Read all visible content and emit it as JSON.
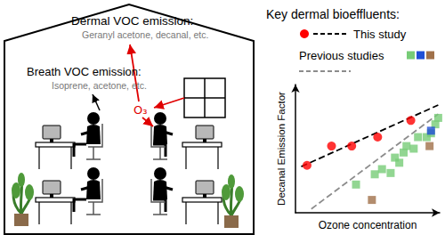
{
  "diagram": {
    "dermal": {
      "title": "Dermal VOC emission:",
      "compounds": "Geranyl acetone, decanal, etc."
    },
    "breath": {
      "title": "Breath VOC emission:",
      "compounds": "Isoprene, acetone, etc."
    },
    "oxidant": "O₃"
  },
  "chart_data": {
    "type": "scatter",
    "title": "Key dermal bioeffluents:",
    "x_label": "Ozone concentration",
    "y_label": "Decanal Emission Factor",
    "xlim": [
      0,
      10
    ],
    "ylim": [
      0,
      10
    ],
    "xticks": [],
    "yticks": [],
    "tick_labels": false,
    "grid": false,
    "series": [
      {
        "name": "This study",
        "color": "#ff0000",
        "marker": "circle",
        "x": [
          0.8,
          2.5,
          3.9,
          5.7,
          8.0
        ],
        "values": [
          3.7,
          5.2,
          5.2,
          5.9,
          7.2
        ],
        "fit": {
          "x": [
            0.4,
            9.9
          ],
          "values": [
            3.6,
            8.4
          ],
          "color": "#000000",
          "line_style": "dashed"
        }
      },
      {
        "name": "Previous studies",
        "marker": "square",
        "x": [
          4.2,
          5.5,
          6.0,
          6.6,
          6.9,
          7.2,
          7.5,
          7.7,
          8.2,
          8.5,
          9.1,
          9.4,
          9.7,
          9.9,
          9.4,
          5.3,
          9.3
        ],
        "values": [
          2.2,
          3.0,
          3.4,
          3.1,
          4.3,
          3.9,
          4.7,
          5.2,
          5.0,
          5.9,
          5.9,
          6.2,
          6.9,
          7.4,
          6.4,
          1.0,
          5.2
        ],
        "colors": [
          "#77cc77",
          "#77cc77",
          "#77cc77",
          "#77cc77",
          "#77cc77",
          "#77cc77",
          "#77cc77",
          "#77cc77",
          "#77cc77",
          "#77cc77",
          "#77cc77",
          "#77cc77",
          "#77cc77",
          "#77cc77",
          "#1f4fd6",
          "#a0714a",
          "#a0714a"
        ],
        "fit": {
          "x": [
            1.1,
            9.9
          ],
          "values": [
            0.3,
            7.7
          ],
          "color": "#8c8c8c",
          "line_style": "dashed"
        }
      }
    ]
  }
}
